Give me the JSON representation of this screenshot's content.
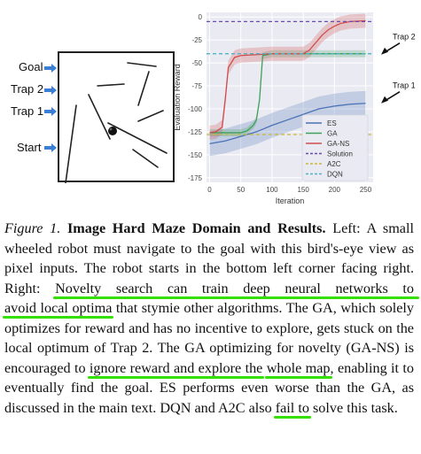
{
  "maze": {
    "labels": {
      "goal": "Goal",
      "trap2": "Trap 2",
      "trap1": "Trap 1",
      "start": "Start"
    },
    "colors": {
      "arrow": "#3a7fd5",
      "wall": "#222222",
      "robot": "#111111"
    }
  },
  "chart_data": {
    "type": "line",
    "xlabel": "Iteration",
    "ylabel": "Evaluation Reward",
    "xlim": [
      -5,
      262
    ],
    "ylim": [
      -180,
      5
    ],
    "xticks": [
      0,
      50,
      100,
      150,
      200,
      250
    ],
    "yticks": [
      0,
      -25,
      -50,
      -75,
      -100,
      -125,
      -150,
      -175
    ],
    "grid": true,
    "legend_position": "lower-right",
    "annotations": [
      {
        "text": "Trap 2",
        "x": 250,
        "y": -40
      },
      {
        "text": "Trap 1",
        "x": 250,
        "y": -93
      }
    ],
    "series": [
      {
        "name": "ES",
        "color": "#4a72b5",
        "x": [
          0,
          25,
          50,
          75,
          100,
          125,
          150,
          175,
          200,
          225,
          250
        ],
        "y": [
          -138,
          -135,
          -130,
          -125,
          -118,
          -112,
          -106,
          -100,
          -97,
          -95,
          -94
        ]
      },
      {
        "name": "GA",
        "color": "#3fa05a",
        "x": [
          0,
          25,
          50,
          60,
          70,
          75,
          80,
          85,
          100,
          150,
          200,
          250
        ],
        "y": [
          -126,
          -126,
          -126,
          -124,
          -118,
          -112,
          -90,
          -42,
          -40,
          -40,
          -40,
          -40
        ]
      },
      {
        "name": "GA-NS",
        "color": "#d14d4d",
        "x": [
          0,
          10,
          20,
          25,
          30,
          40,
          50,
          75,
          100,
          125,
          150,
          160,
          170,
          180,
          190,
          200,
          210,
          225,
          250
        ],
        "y": [
          -126,
          -125,
          -120,
          -90,
          -55,
          -44,
          -42,
          -41,
          -40,
          -40,
          -40,
          -36,
          -28,
          -20,
          -14,
          -10,
          -7,
          -5,
          -4
        ]
      },
      {
        "name": "Solution",
        "color": "#6a4bb0",
        "dashed": true,
        "x": [
          -5,
          262
        ],
        "y": [
          -5,
          -5
        ]
      },
      {
        "name": "A2C",
        "color": "#c9b83a",
        "dashed": true,
        "x": [
          -5,
          262
        ],
        "y": [
          -128,
          -128
        ]
      },
      {
        "name": "DQN",
        "color": "#4fb3c8",
        "dashed": true,
        "x": [
          -5,
          262
        ],
        "y": [
          -40,
          -40
        ]
      }
    ]
  },
  "caption": {
    "figure_label": "Figure 1.",
    "title": "Image Hard Maze Domain and Results.",
    "seg1": " Left: A small wheeled robot must navigate to the goal with this bird's-eye view as pixel inputs. The robot starts in the bottom left corner facing right. Right: ",
    "hl1": "Novelty search can train deep neural networks to",
    "hl2": "avoid local optima",
    "seg2": " that stymie other algorithms. The GA, which solely optimizes for reward and has no incentive to explore, gets stuck on the local optimum of Trap 2. The GA optimizing for novelty (GA-NS) is encouraged to ",
    "hl3": "ignore reward and explore the",
    "hl4": "whole map",
    "seg3": ", enabling it to eventually find the goal. ES performs even worse than the GA, as discussed in the main text. DQN and A2C also ",
    "hl5": "fail to",
    "seg4": " solve this task."
  }
}
